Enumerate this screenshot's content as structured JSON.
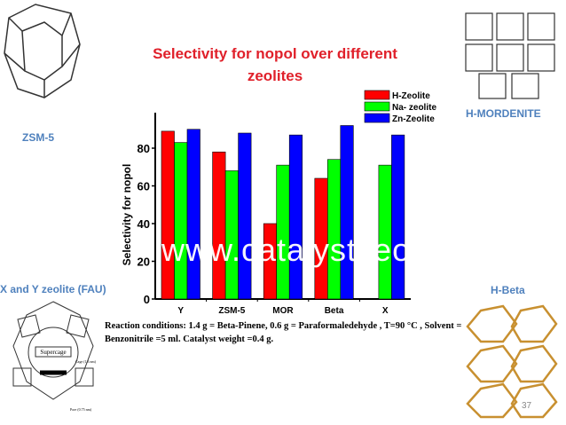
{
  "slide": {
    "title": "Selectivity  for nopol over different zeolites",
    "captions": {
      "zsm5": "ZSM-5",
      "mordenite": "H-MORDENITE",
      "fau": "X and Y zeolite (FAU)",
      "beta": "H-Beta"
    },
    "fau_labels": {
      "supercage": "Supercage",
      "cage": "Cage (1.3 nm)",
      "pore": "Pore (0.75 nm)"
    },
    "note": "Reaction conditions: 1.4 g = Beta-Pinene, 0.6 g = Paraformaledehyde , T=90 °C , Solvent = Benzonitrile =5 ml. Catalyst weight  =0.4 g.",
    "watermark": "www.catalystzeolite.com",
    "page_number": "37"
  },
  "chart_data": {
    "type": "bar",
    "title": "Selectivity  for nopol over different zeolites",
    "xlabel": "",
    "ylabel": "Selectivity for nopol",
    "ylim": [
      0,
      100
    ],
    "yticks": [
      0,
      20,
      40,
      60,
      80
    ],
    "categories": [
      "Y",
      "ZSM-5",
      "MOR",
      "Beta",
      "X"
    ],
    "legend_position": "top-right",
    "series": [
      {
        "name": "H-Zeolite",
        "color": "#ff0000",
        "values": [
          89,
          78,
          40,
          64,
          null
        ]
      },
      {
        "name": "Na- zeolite",
        "color": "#00ff00",
        "values": [
          83,
          68,
          71,
          74,
          71
        ]
      },
      {
        "name": "Zn-Zeolite",
        "color": "#0000ff",
        "values": [
          90,
          88,
          87,
          92,
          87
        ]
      }
    ]
  }
}
